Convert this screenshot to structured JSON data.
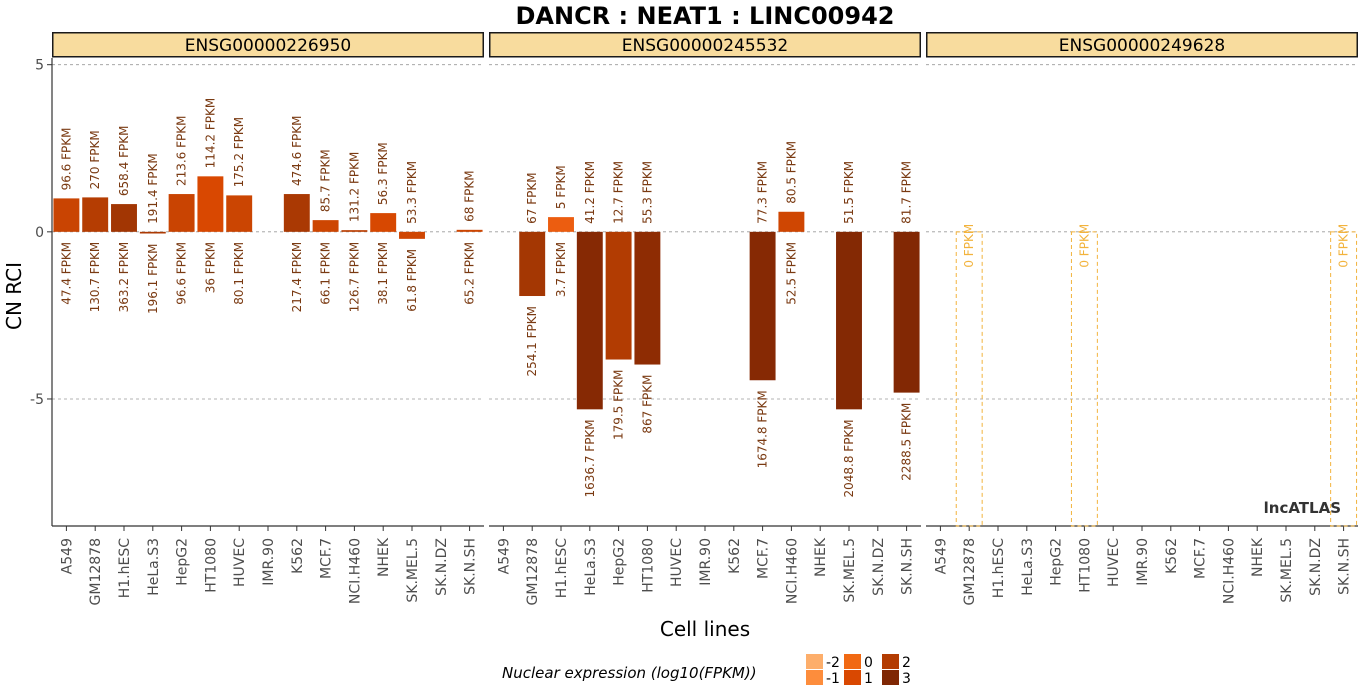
{
  "chart_data": {
    "type": "bar",
    "title": "DANCR : NEAT1 : LINC00942",
    "xlabel": "Cell lines",
    "ylabel": "CN RCI",
    "ylim": [
      -8.8,
      5.2
    ],
    "yticks": [
      5,
      0,
      -5
    ],
    "grid": "dashed horizontal at 5, 0, -5",
    "watermark": "lncATLAS",
    "categories": [
      "A549",
      "GM12878",
      "H1.hESC",
      "HeLa.S3",
      "HepG2",
      "HT1080",
      "HUVEC",
      "IMR.90",
      "K562",
      "MCF.7",
      "NCI.H460",
      "NHEK",
      "SK.MEL.5",
      "SK.N.DZ",
      "SK.N.SH"
    ],
    "legend": {
      "title": "Nuclear expression (log10(FPKM))",
      "position": "bottom",
      "keys": [
        {
          "label": "-2",
          "color": "#fdae6b"
        },
        {
          "label": "-1",
          "color": "#fd8d3c"
        },
        {
          "label": "0",
          "color": "#f16913"
        },
        {
          "label": "1",
          "color": "#d94801"
        },
        {
          "label": "2",
          "color": "#b33c02"
        },
        {
          "label": "3",
          "color": "#7f2704"
        }
      ]
    },
    "panels": [
      {
        "gene": "ENSG00000226950",
        "bars": [
          {
            "cell": "A549",
            "rci": 1.0,
            "cyto": "96.6 FPKM",
            "nuc": "47.4 FPKM",
            "color": "#c94402"
          },
          {
            "cell": "GM12878",
            "rci": 1.03,
            "cyto": "270 FPKM",
            "nuc": "130.7 FPKM",
            "color": "#b53d02"
          },
          {
            "cell": "H1.hESC",
            "rci": 0.83,
            "cyto": "658.4 FPKM",
            "nuc": "363.2 FPKM",
            "color": "#a23603"
          },
          {
            "cell": "HeLa.S3",
            "rci": -0.05,
            "cyto": "191.4 FPKM",
            "nuc": "196.1 FPKM",
            "color": "#ac3a03"
          },
          {
            "cell": "HepG2",
            "rci": 1.13,
            "cyto": "213.6 FPKM",
            "nuc": "96.6 FPKM",
            "color": "#c94402"
          },
          {
            "cell": "HT1080",
            "rci": 1.66,
            "cyto": "114.2 FPKM",
            "nuc": "36 FPKM",
            "color": "#d94801"
          },
          {
            "cell": "HUVEC",
            "rci": 1.09,
            "cyto": "175.2 FPKM",
            "nuc": "80.1 FPKM",
            "color": "#cb4502"
          },
          {
            "cell": "K562",
            "rci": 1.13,
            "cyto": "474.6 FPKM",
            "nuc": "217.4 FPKM",
            "color": "#aa3903"
          },
          {
            "cell": "MCF.7",
            "rci": 0.35,
            "cyto": "85.7 FPKM",
            "nuc": "66.1 FPKM",
            "color": "#cd4602"
          },
          {
            "cell": "NCI.H460",
            "rci": 0.05,
            "cyto": "131.2 FPKM",
            "nuc": "126.7 FPKM",
            "color": "#bb3f02"
          },
          {
            "cell": "NHEK",
            "rci": 0.56,
            "cyto": "56.3 FPKM",
            "nuc": "38.1 FPKM",
            "color": "#d74801"
          },
          {
            "cell": "SK.MEL.5",
            "rci": -0.21,
            "cyto": "53.3 FPKM",
            "nuc": "61.8 FPKM",
            "color": "#cf4602"
          },
          {
            "cell": "SK.N.SH",
            "rci": 0.06,
            "cyto": "68 FPKM",
            "nuc": "65.2 FPKM",
            "color": "#cd4602"
          }
        ]
      },
      {
        "gene": "ENSG00000245532",
        "bars": [
          {
            "cell": "GM12878",
            "rci": -1.92,
            "cyto": "67 FPKM",
            "nuc": "254.1 FPKM",
            "color": "#a43703"
          },
          {
            "cell": "H1.hESC",
            "rci": 0.44,
            "cyto": "5 FPKM",
            "nuc": "3.7 FPKM",
            "color": "#ec5d10"
          },
          {
            "cell": "HeLa.S3",
            "rci": -5.31,
            "cyto": "41.2 FPKM",
            "nuc": "1636.7 FPKM",
            "color": "#862904"
          },
          {
            "cell": "HepG2",
            "rci": -3.82,
            "cyto": "12.7 FPKM",
            "nuc": "179.5 FPKM",
            "color": "#b23c02"
          },
          {
            "cell": "HT1080",
            "rci": -3.97,
            "cyto": "55.3 FPKM",
            "nuc": "867 FPKM",
            "color": "#8e2c03"
          },
          {
            "cell": "MCF.7",
            "rci": -4.44,
            "cyto": "77.3 FPKM",
            "nuc": "1674.8 FPKM",
            "color": "#862904"
          },
          {
            "cell": "NCI.H460",
            "rci": 0.6,
            "cyto": "80.5 FPKM",
            "nuc": "52.5 FPKM",
            "color": "#cf4602"
          },
          {
            "cell": "SK.MEL.5",
            "rci": -5.31,
            "cyto": "51.5 FPKM",
            "nuc": "2048.8 FPKM",
            "color": "#842904"
          },
          {
            "cell": "SK.N.SH",
            "rci": -4.81,
            "cyto": "81.7 FPKM",
            "nuc": "2288.5 FPKM",
            "color": "#822804"
          }
        ]
      },
      {
        "gene": "ENSG00000249628",
        "bars": [
          {
            "cell": "GM12878",
            "rci": 0,
            "cyto": "0 FPKM",
            "nuc": "",
            "color": "",
            "empty": true
          },
          {
            "cell": "HT1080",
            "rci": 0,
            "cyto": "0 FPKM",
            "nuc": "",
            "color": "",
            "empty": true
          },
          {
            "cell": "SK.N.SH",
            "rci": 0,
            "cyto": "0 FPKM",
            "nuc": "",
            "color": "",
            "empty": true
          }
        ]
      }
    ]
  }
}
